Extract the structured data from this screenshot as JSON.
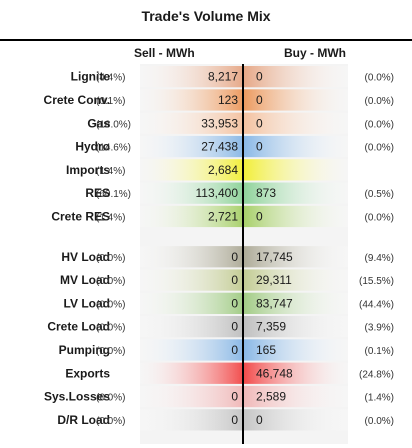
{
  "title": "Trade's Volume Mix",
  "sell_header": "Sell - MWh",
  "buy_header": "Buy - MWh",
  "colors": {
    "text": "#1a1a1a",
    "divider": "#000000"
  },
  "chart_data": {
    "type": "table",
    "columns": [
      "Sell - MWh",
      "Buy - MWh"
    ],
    "rows": [
      {
        "label": "Lignite",
        "sell": "8,217",
        "sell_pct": "(4.4%)",
        "buy": "0",
        "buy_pct": "(0.0%)",
        "color": "#e6a887"
      },
      {
        "label": "Crete Conv.",
        "sell": "123",
        "sell_pct": "(0.1%)",
        "buy": "0",
        "buy_pct": "(0.0%)",
        "color": "#ec9a5f"
      },
      {
        "label": "Gas",
        "sell": "33,953",
        "sell_pct": "(18.0%)",
        "buy": "0",
        "buy_pct": "(0.0%)",
        "color": "#f4c2a0"
      },
      {
        "label": "Hydro",
        "sell": "27,438",
        "sell_pct": "(14.6%)",
        "buy": "0",
        "buy_pct": "(0.0%)",
        "color": "#8ab8e6"
      },
      {
        "label": "Imports",
        "sell": "2,684",
        "sell_pct": "(1.4%)",
        "buy": "",
        "buy_pct": "",
        "color": "#f2ef3a"
      },
      {
        "label": "RES",
        "sell": "113,400",
        "sell_pct": "(60.1%)",
        "buy": "873",
        "buy_pct": "(0.5%)",
        "color": "#8fd39a"
      },
      {
        "label": "Crete RES",
        "sell": "2,721",
        "sell_pct": "(1.4%)",
        "buy": "0",
        "buy_pct": "(0.0%)",
        "color": "#a8d06a"
      },
      {
        "label": "HV Load",
        "sell": "0",
        "sell_pct": "(0.0%)",
        "buy": "17,745",
        "buy_pct": "(9.4%)",
        "color": "#aeab98"
      },
      {
        "label": "MV Load",
        "sell": "0",
        "sell_pct": "(0.0%)",
        "buy": "29,311",
        "buy_pct": "(15.5%)",
        "color": "#c3cc94"
      },
      {
        "label": "LV Load",
        "sell": "0",
        "sell_pct": "(0.0%)",
        "buy": "83,747",
        "buy_pct": "(44.4%)",
        "color": "#a2cc86"
      },
      {
        "label": "Crete Load",
        "sell": "0",
        "sell_pct": "(0.0%)",
        "buy": "7,359",
        "buy_pct": "(3.9%)",
        "color": "#bfbfbf"
      },
      {
        "label": "Pumping",
        "sell": "0",
        "sell_pct": "(0.0%)",
        "buy": "165",
        "buy_pct": "(0.1%)",
        "color": "#8ab8e6"
      },
      {
        "label": "Exports",
        "sell": "",
        "sell_pct": "",
        "buy": "46,748",
        "buy_pct": "(24.8%)",
        "color": "#f24b4b"
      },
      {
        "label": "Sys.Losses",
        "sell": "0",
        "sell_pct": "(0.0%)",
        "buy": "2,589",
        "buy_pct": "(1.4%)",
        "color": "#f0b8b8"
      },
      {
        "label": "D/R Load",
        "sell": "0",
        "sell_pct": "(0.0%)",
        "buy": "0",
        "buy_pct": "(0.0%)",
        "color": "#c6c6c6"
      }
    ]
  }
}
